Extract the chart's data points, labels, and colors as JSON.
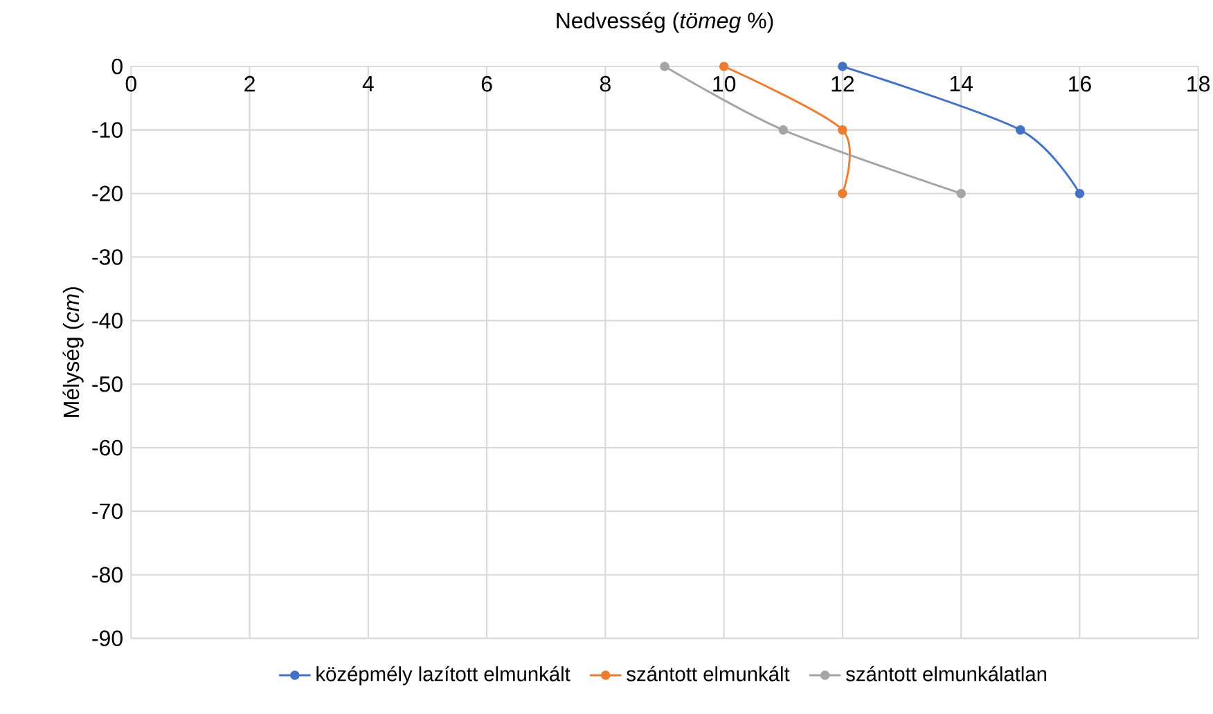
{
  "chart_data": {
    "type": "line",
    "xlabel": "Nedvesség (*tömeg* %)",
    "ylabel": "Mélység (*cm*)",
    "xlim": [
      0,
      18
    ],
    "xticks": [
      0,
      2,
      4,
      6,
      8,
      10,
      12,
      14,
      16,
      18
    ],
    "ylim": [
      -90,
      0
    ],
    "yticks": [
      0,
      -10,
      -20,
      -30,
      -40,
      -50,
      -60,
      -70,
      -80,
      -90
    ],
    "series": [
      {
        "name": "középmély lazított elmunkált",
        "color": "#4472c4",
        "x": [
          12,
          15,
          16
        ],
        "values": [
          0,
          -10,
          -20
        ]
      },
      {
        "name": "szántott elmunkált",
        "color": "#ed7d31",
        "x": [
          10,
          12,
          12
        ],
        "values": [
          0,
          -10,
          -20
        ]
      },
      {
        "name": "szántott elmunkálatlan",
        "color": "#a5a5a5",
        "x": [
          9,
          11,
          14
        ],
        "values": [
          0,
          -10,
          -20
        ]
      }
    ],
    "grid": true,
    "legend": "bottom",
    "marker": "circle",
    "line_style": "solid"
  }
}
